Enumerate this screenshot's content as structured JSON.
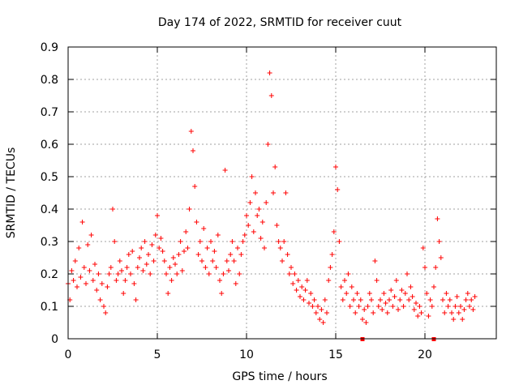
{
  "chart_data": {
    "type": "scatter",
    "title": "Day 174 of 2022, SRMTID for receiver cuut",
    "xlabel": "GPS time / hours",
    "ylabel": "SRMTID / TECUs",
    "xlim": [
      0,
      24
    ],
    "ylim": [
      0,
      0.9
    ],
    "xticks": [
      0,
      5,
      10,
      15,
      20
    ],
    "yticks": [
      0,
      0.1,
      0.2,
      0.3,
      0.4,
      0.5,
      0.6,
      0.7,
      0.8,
      0.9
    ],
    "xtick_labels": [
      "0",
      "5",
      "10",
      "15",
      "20"
    ],
    "ytick_labels": [
      "0",
      "0.1",
      "0.2",
      "0.3",
      "0.4",
      "0.5",
      "0.6",
      "0.7",
      "0.8",
      "0.9"
    ],
    "grid": true,
    "marker": "plus",
    "color": "#ff0000",
    "series": [
      {
        "name": "SRMTID",
        "points": [
          [
            0.0,
            0.17
          ],
          [
            0.1,
            0.12
          ],
          [
            0.2,
            0.21
          ],
          [
            0.3,
            0.18
          ],
          [
            0.4,
            0.24
          ],
          [
            0.5,
            0.16
          ],
          [
            0.6,
            0.28
          ],
          [
            0.7,
            0.19
          ],
          [
            0.8,
            0.36
          ],
          [
            0.9,
            0.22
          ],
          [
            1.0,
            0.17
          ],
          [
            1.1,
            0.29
          ],
          [
            1.2,
            0.21
          ],
          [
            1.3,
            0.32
          ],
          [
            1.4,
            0.18
          ],
          [
            1.5,
            0.23
          ],
          [
            1.6,
            0.15
          ],
          [
            1.7,
            0.2
          ],
          [
            1.8,
            0.12
          ],
          [
            1.9,
            0.17
          ],
          [
            2.0,
            0.1
          ],
          [
            2.1,
            0.08
          ],
          [
            2.2,
            0.16
          ],
          [
            2.3,
            0.2
          ],
          [
            2.4,
            0.22
          ],
          [
            2.5,
            0.4
          ],
          [
            2.6,
            0.3
          ],
          [
            2.7,
            0.18
          ],
          [
            2.8,
            0.2
          ],
          [
            2.9,
            0.24
          ],
          [
            3.0,
            0.21
          ],
          [
            3.1,
            0.14
          ],
          [
            3.2,
            0.18
          ],
          [
            3.3,
            0.22
          ],
          [
            3.4,
            0.26
          ],
          [
            3.5,
            0.2
          ],
          [
            3.6,
            0.27
          ],
          [
            3.7,
            0.17
          ],
          [
            3.8,
            0.12
          ],
          [
            3.9,
            0.22
          ],
          [
            4.0,
            0.25
          ],
          [
            4.1,
            0.28
          ],
          [
            4.2,
            0.21
          ],
          [
            4.3,
            0.3
          ],
          [
            4.4,
            0.23
          ],
          [
            4.5,
            0.26
          ],
          [
            4.6,
            0.2
          ],
          [
            4.7,
            0.29
          ],
          [
            4.8,
            0.24
          ],
          [
            4.9,
            0.32
          ],
          [
            5.0,
            0.38
          ],
          [
            5.1,
            0.28
          ],
          [
            5.2,
            0.31
          ],
          [
            5.3,
            0.27
          ],
          [
            5.4,
            0.24
          ],
          [
            5.5,
            0.2
          ],
          [
            5.6,
            0.14
          ],
          [
            5.7,
            0.22
          ],
          [
            5.8,
            0.18
          ],
          [
            5.9,
            0.25
          ],
          [
            6.0,
            0.23
          ],
          [
            6.1,
            0.2
          ],
          [
            6.2,
            0.26
          ],
          [
            6.3,
            0.3
          ],
          [
            6.4,
            0.21
          ],
          [
            6.5,
            0.27
          ],
          [
            6.6,
            0.33
          ],
          [
            6.7,
            0.28
          ],
          [
            6.8,
            0.4
          ],
          [
            6.9,
            0.64
          ],
          [
            7.0,
            0.58
          ],
          [
            7.1,
            0.47
          ],
          [
            7.2,
            0.36
          ],
          [
            7.3,
            0.26
          ],
          [
            7.4,
            0.3
          ],
          [
            7.5,
            0.24
          ],
          [
            7.6,
            0.34
          ],
          [
            7.7,
            0.22
          ],
          [
            7.8,
            0.28
          ],
          [
            7.9,
            0.2
          ],
          [
            8.0,
            0.3
          ],
          [
            8.1,
            0.24
          ],
          [
            8.2,
            0.27
          ],
          [
            8.3,
            0.22
          ],
          [
            8.4,
            0.32
          ],
          [
            8.5,
            0.18
          ],
          [
            8.6,
            0.14
          ],
          [
            8.7,
            0.2
          ],
          [
            8.8,
            0.52
          ],
          [
            8.9,
            0.24
          ],
          [
            9.0,
            0.21
          ],
          [
            9.1,
            0.26
          ],
          [
            9.2,
            0.3
          ],
          [
            9.3,
            0.24
          ],
          [
            9.4,
            0.17
          ],
          [
            9.5,
            0.28
          ],
          [
            9.6,
            0.2
          ],
          [
            9.7,
            0.26
          ],
          [
            9.8,
            0.3
          ],
          [
            9.9,
            0.32
          ],
          [
            10.0,
            0.38
          ],
          [
            10.1,
            0.35
          ],
          [
            10.2,
            0.42
          ],
          [
            10.3,
            0.5
          ],
          [
            10.4,
            0.33
          ],
          [
            10.5,
            0.45
          ],
          [
            10.6,
            0.38
          ],
          [
            10.7,
            0.4
          ],
          [
            10.8,
            0.31
          ],
          [
            10.9,
            0.36
          ],
          [
            11.0,
            0.28
          ],
          [
            11.1,
            0.42
          ],
          [
            11.2,
            0.6
          ],
          [
            11.3,
            0.82
          ],
          [
            11.4,
            0.75
          ],
          [
            11.5,
            0.45
          ],
          [
            11.6,
            0.53
          ],
          [
            11.7,
            0.35
          ],
          [
            11.8,
            0.3
          ],
          [
            11.9,
            0.28
          ],
          [
            12.0,
            0.24
          ],
          [
            12.1,
            0.3
          ],
          [
            12.2,
            0.45
          ],
          [
            12.3,
            0.26
          ],
          [
            12.4,
            0.2
          ],
          [
            12.5,
            0.22
          ],
          [
            12.6,
            0.17
          ],
          [
            12.7,
            0.2
          ],
          [
            12.8,
            0.15
          ],
          [
            12.9,
            0.18
          ],
          [
            13.0,
            0.13
          ],
          [
            13.1,
            0.16
          ],
          [
            13.2,
            0.12
          ],
          [
            13.3,
            0.15
          ],
          [
            13.4,
            0.18
          ],
          [
            13.5,
            0.11
          ],
          [
            13.6,
            0.14
          ],
          [
            13.7,
            0.1
          ],
          [
            13.8,
            0.12
          ],
          [
            13.9,
            0.08
          ],
          [
            14.0,
            0.1
          ],
          [
            14.1,
            0.06
          ],
          [
            14.2,
            0.09
          ],
          [
            14.3,
            0.05
          ],
          [
            14.4,
            0.12
          ],
          [
            14.5,
            0.08
          ],
          [
            14.6,
            0.18
          ],
          [
            14.7,
            0.22
          ],
          [
            14.8,
            0.26
          ],
          [
            14.9,
            0.33
          ],
          [
            15.0,
            0.53
          ],
          [
            15.1,
            0.46
          ],
          [
            15.2,
            0.3
          ],
          [
            15.3,
            0.16
          ],
          [
            15.4,
            0.12
          ],
          [
            15.5,
            0.18
          ],
          [
            15.6,
            0.14
          ],
          [
            15.7,
            0.2
          ],
          [
            15.8,
            0.1
          ],
          [
            15.9,
            0.16
          ],
          [
            16.0,
            0.12
          ],
          [
            16.1,
            0.08
          ],
          [
            16.2,
            0.14
          ],
          [
            16.3,
            0.1
          ],
          [
            16.4,
            0.12
          ],
          [
            16.5,
            0.06
          ],
          [
            16.6,
            0.09
          ],
          [
            16.7,
            0.05
          ],
          [
            16.8,
            0.1
          ],
          [
            16.9,
            0.14
          ],
          [
            17.0,
            0.12
          ],
          [
            17.1,
            0.08
          ],
          [
            17.2,
            0.24
          ],
          [
            17.3,
            0.18
          ],
          [
            17.4,
            0.1
          ],
          [
            17.5,
            0.12
          ],
          [
            17.6,
            0.09
          ],
          [
            17.7,
            0.14
          ],
          [
            17.8,
            0.11
          ],
          [
            17.9,
            0.08
          ],
          [
            18.0,
            0.12
          ],
          [
            18.1,
            0.15
          ],
          [
            18.2,
            0.1
          ],
          [
            18.3,
            0.13
          ],
          [
            18.4,
            0.18
          ],
          [
            18.5,
            0.09
          ],
          [
            18.6,
            0.12
          ],
          [
            18.7,
            0.15
          ],
          [
            18.8,
            0.1
          ],
          [
            18.9,
            0.14
          ],
          [
            19.0,
            0.2
          ],
          [
            19.1,
            0.12
          ],
          [
            19.2,
            0.16
          ],
          [
            19.3,
            0.13
          ],
          [
            19.4,
            0.09
          ],
          [
            19.5,
            0.11
          ],
          [
            19.6,
            0.07
          ],
          [
            19.7,
            0.1
          ],
          [
            19.8,
            0.08
          ],
          [
            19.9,
            0.28
          ],
          [
            20.0,
            0.22
          ],
          [
            20.1,
            0.14
          ],
          [
            20.2,
            0.07
          ],
          [
            20.3,
            0.12
          ],
          [
            20.4,
            0.1
          ],
          [
            20.5,
            0.16
          ],
          [
            20.6,
            0.22
          ],
          [
            20.7,
            0.37
          ],
          [
            20.8,
            0.3
          ],
          [
            20.9,
            0.25
          ],
          [
            21.0,
            0.12
          ],
          [
            21.1,
            0.08
          ],
          [
            21.2,
            0.14
          ],
          [
            21.3,
            0.1
          ],
          [
            21.4,
            0.12
          ],
          [
            21.5,
            0.08
          ],
          [
            21.6,
            0.06
          ],
          [
            21.7,
            0.1
          ],
          [
            21.8,
            0.13
          ],
          [
            21.9,
            0.08
          ],
          [
            22.0,
            0.1
          ],
          [
            22.1,
            0.06
          ],
          [
            22.2,
            0.09
          ],
          [
            22.3,
            0.12
          ],
          [
            22.4,
            0.14
          ],
          [
            22.5,
            0.1
          ],
          [
            22.6,
            0.12
          ],
          [
            22.7,
            0.09
          ],
          [
            22.8,
            0.13
          ]
        ]
      }
    ],
    "markers_on_axis": [
      16.5,
      20.5
    ]
  }
}
